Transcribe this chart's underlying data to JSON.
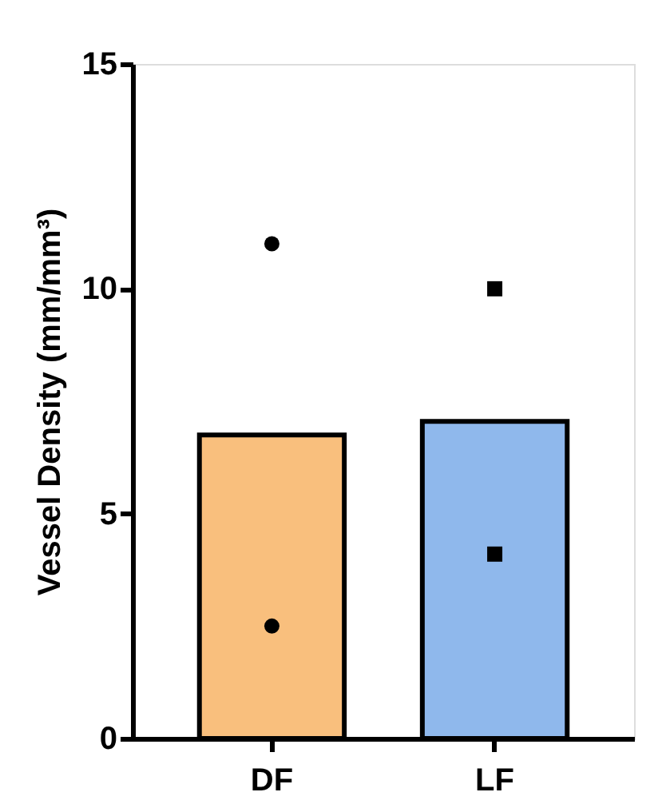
{
  "chart_data": {
    "type": "bar",
    "ylabel": "Vessel Density (mm/mm³)",
    "categories": [
      "DF",
      "LF"
    ],
    "series": [
      {
        "colors": [
          "#f9bf7d",
          "#8fb8ec"
        ],
        "values": [
          6.75,
          7.05
        ]
      },
      {
        "type": "scatter",
        "x": [
          "DF",
          "DF"
        ],
        "values": [
          11,
          2.5
        ],
        "color": "#000000",
        "marker": "circle"
      },
      {
        "type": "scatter",
        "x": [
          "LF",
          "LF"
        ],
        "values": [
          10,
          4.1
        ],
        "color": "#000000",
        "marker": "square"
      }
    ],
    "ylim": [
      0,
      15
    ],
    "yticks": [
      0,
      5,
      10,
      15
    ]
  }
}
